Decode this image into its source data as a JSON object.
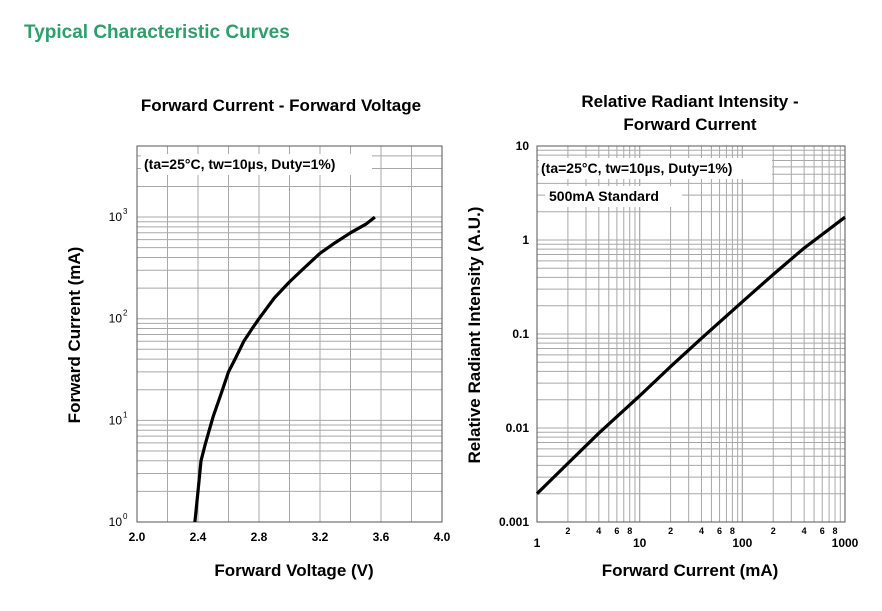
{
  "page": {
    "heading": "Typical Characteristic Curves",
    "heading_color": "#2e9e6b"
  },
  "chart_data": [
    {
      "type": "line",
      "title": "Forward Current - Forward Voltage",
      "annotation": "(ta=25°C, tw=10µs, Duty=1%)",
      "xlabel": "Forward Voltage (V)",
      "ylabel": "Forward Current (mA)",
      "xlim": [
        2.0,
        4.0
      ],
      "ylim": [
        1,
        5000
      ],
      "yscale": "log",
      "xticks": [
        "2.0",
        "2.4",
        "2.8",
        "3.2",
        "3.6",
        "4.0"
      ],
      "xtick_values": [
        2.0,
        2.4,
        2.8,
        3.2,
        3.6,
        4.0
      ],
      "yticks": [
        {
          "base": "10",
          "exp": "0",
          "value": 1
        },
        {
          "base": "10",
          "exp": "1",
          "value": 10
        },
        {
          "base": "10",
          "exp": "2",
          "value": 100
        },
        {
          "base": "10",
          "exp": "3",
          "value": 1000
        }
      ],
      "grid": true,
      "series": [
        {
          "x": [
            2.38,
            2.4,
            2.42,
            2.45,
            2.5,
            2.55,
            2.6,
            2.65,
            2.7,
            2.75,
            2.8,
            2.9,
            3.0,
            3.1,
            3.2,
            3.3,
            3.4,
            3.5,
            3.56
          ],
          "y": [
            1.0,
            2.0,
            4.0,
            6.0,
            11.0,
            18.0,
            30.0,
            42.0,
            60.0,
            78.0,
            100.0,
            160.0,
            230.0,
            320.0,
            440.0,
            560.0,
            700.0,
            850.0,
            1000.0
          ]
        }
      ]
    },
    {
      "type": "line",
      "title": "Relative Radiant Intensity -",
      "title_line2": "Forward Current",
      "annotation": "(ta=25°C, tw=10µs, Duty=1%)",
      "annotation2": "500mA Standard",
      "xlabel": "Forward Current (mA)",
      "ylabel": "Relative Radiant Intensity (A.U.)",
      "xlim": [
        1,
        1000
      ],
      "ylim": [
        0.001,
        10
      ],
      "xscale": "log",
      "yscale": "log",
      "xticks": [
        {
          "label": "1",
          "value": 1
        },
        {
          "label": "10",
          "value": 10
        },
        {
          "label": "100",
          "value": 100
        },
        {
          "label": "1000",
          "value": 1000
        }
      ],
      "xminor_labels": [
        "2",
        "4",
        "6",
        "8",
        "2",
        "4",
        "6",
        "8",
        "2",
        "4",
        "6",
        "8"
      ],
      "yticks": [
        {
          "label": "0.001",
          "value": 0.001
        },
        {
          "label": "0.01",
          "value": 0.01
        },
        {
          "label": "0.1",
          "value": 0.1
        },
        {
          "label": "1",
          "value": 1
        },
        {
          "label": "10",
          "value": 10
        }
      ],
      "grid": true,
      "series": [
        {
          "x": [
            1,
            2,
            4,
            10,
            20,
            40,
            100,
            200,
            400,
            1000
          ],
          "y": [
            0.002,
            0.0042,
            0.0088,
            0.022,
            0.045,
            0.09,
            0.22,
            0.43,
            0.82,
            1.75
          ]
        }
      ]
    }
  ]
}
